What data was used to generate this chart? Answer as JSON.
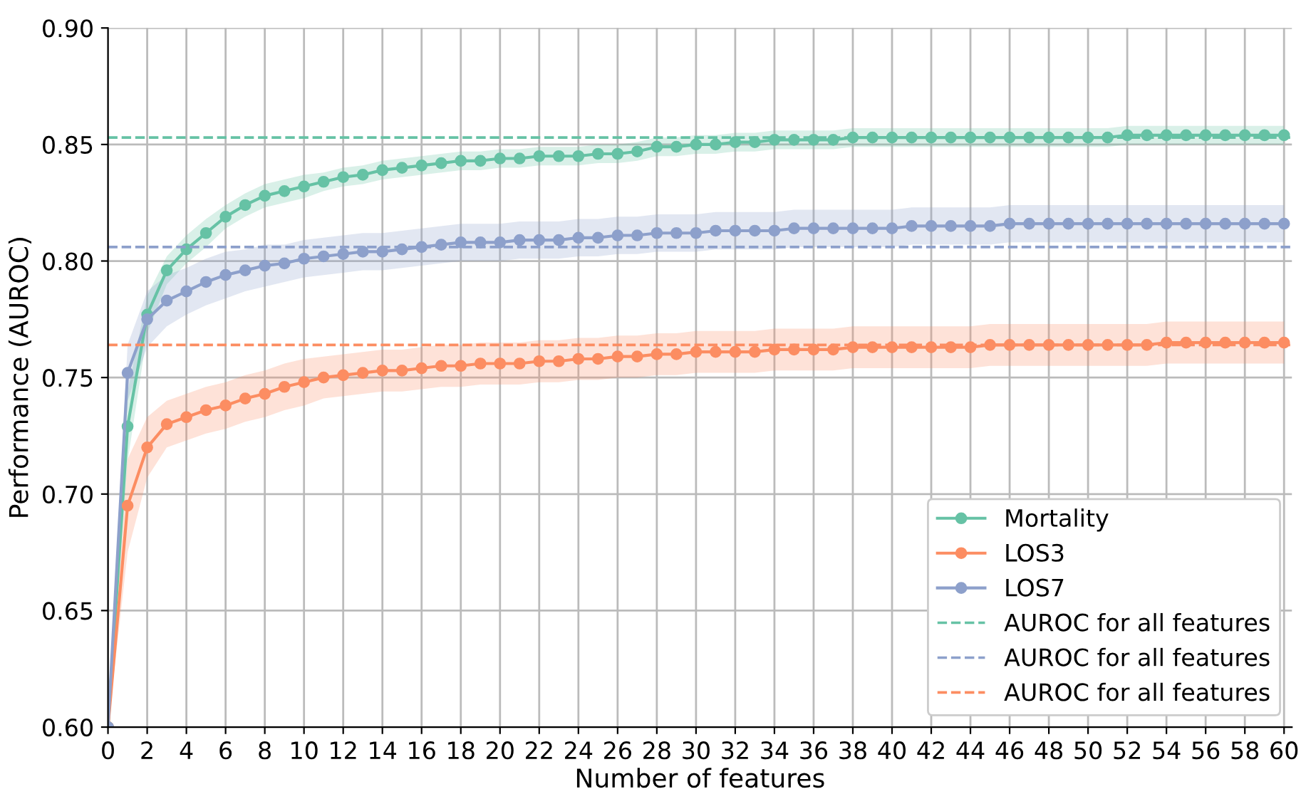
{
  "chart_data": {
    "type": "line",
    "xlabel": "Number of features",
    "ylabel": "Performance (AUROC)",
    "x": [
      0,
      1,
      2,
      3,
      4,
      5,
      6,
      7,
      8,
      9,
      10,
      11,
      12,
      13,
      14,
      15,
      16,
      17,
      18,
      19,
      20,
      21,
      22,
      23,
      24,
      25,
      26,
      27,
      28,
      29,
      30,
      31,
      32,
      33,
      34,
      35,
      36,
      37,
      38,
      39,
      40,
      41,
      42,
      43,
      44,
      45,
      46,
      47,
      48,
      49,
      50,
      51,
      52,
      53,
      54,
      55,
      56,
      57,
      58,
      59,
      60
    ],
    "series": [
      {
        "name": "Mortality",
        "color": "#66c2a5",
        "values": [
          0.6,
          0.729,
          0.777,
          0.796,
          0.805,
          0.812,
          0.819,
          0.824,
          0.828,
          0.83,
          0.832,
          0.834,
          0.836,
          0.837,
          0.839,
          0.84,
          0.841,
          0.842,
          0.843,
          0.843,
          0.844,
          0.844,
          0.845,
          0.845,
          0.845,
          0.846,
          0.846,
          0.847,
          0.849,
          0.849,
          0.85,
          0.85,
          0.851,
          0.851,
          0.852,
          0.852,
          0.852,
          0.852,
          0.853,
          0.853,
          0.853,
          0.853,
          0.853,
          0.853,
          0.853,
          0.853,
          0.853,
          0.853,
          0.853,
          0.853,
          0.853,
          0.853,
          0.854,
          0.854,
          0.854,
          0.854,
          0.854,
          0.854,
          0.854,
          0.854,
          0.854
        ],
        "lower": [
          0.6,
          0.714,
          0.769,
          0.79,
          0.799,
          0.806,
          0.814,
          0.819,
          0.823,
          0.825,
          0.827,
          0.83,
          0.832,
          0.833,
          0.835,
          0.836,
          0.837,
          0.838,
          0.839,
          0.839,
          0.84,
          0.84,
          0.841,
          0.841,
          0.841,
          0.842,
          0.842,
          0.843,
          0.845,
          0.845,
          0.846,
          0.846,
          0.847,
          0.847,
          0.848,
          0.848,
          0.848,
          0.848,
          0.849,
          0.849,
          0.849,
          0.849,
          0.849,
          0.849,
          0.849,
          0.849,
          0.849,
          0.849,
          0.849,
          0.849,
          0.849,
          0.849,
          0.85,
          0.85,
          0.85,
          0.85,
          0.85,
          0.85,
          0.85,
          0.85,
          0.85
        ],
        "upper": [
          0.6,
          0.744,
          0.785,
          0.802,
          0.811,
          0.818,
          0.824,
          0.829,
          0.833,
          0.835,
          0.837,
          0.838,
          0.84,
          0.841,
          0.843,
          0.844,
          0.845,
          0.846,
          0.847,
          0.847,
          0.848,
          0.848,
          0.849,
          0.849,
          0.849,
          0.85,
          0.85,
          0.851,
          0.853,
          0.853,
          0.854,
          0.854,
          0.855,
          0.855,
          0.856,
          0.856,
          0.856,
          0.856,
          0.857,
          0.857,
          0.857,
          0.857,
          0.857,
          0.857,
          0.857,
          0.857,
          0.857,
          0.857,
          0.857,
          0.857,
          0.857,
          0.857,
          0.858,
          0.858,
          0.858,
          0.858,
          0.858,
          0.858,
          0.858,
          0.858,
          0.858
        ]
      },
      {
        "name": "LOS3",
        "color": "#fc8d62",
        "values": [
          0.6,
          0.695,
          0.72,
          0.73,
          0.733,
          0.736,
          0.738,
          0.741,
          0.743,
          0.746,
          0.748,
          0.75,
          0.751,
          0.752,
          0.753,
          0.753,
          0.754,
          0.755,
          0.755,
          0.756,
          0.756,
          0.756,
          0.757,
          0.757,
          0.758,
          0.758,
          0.759,
          0.759,
          0.76,
          0.76,
          0.761,
          0.761,
          0.761,
          0.761,
          0.762,
          0.762,
          0.762,
          0.762,
          0.763,
          0.763,
          0.763,
          0.763,
          0.763,
          0.763,
          0.763,
          0.764,
          0.764,
          0.764,
          0.764,
          0.764,
          0.764,
          0.764,
          0.764,
          0.764,
          0.765,
          0.765,
          0.765,
          0.765,
          0.765,
          0.765,
          0.765
        ],
        "lower": [
          0.6,
          0.675,
          0.707,
          0.72,
          0.723,
          0.726,
          0.728,
          0.731,
          0.733,
          0.736,
          0.738,
          0.741,
          0.742,
          0.743,
          0.744,
          0.744,
          0.745,
          0.746,
          0.746,
          0.747,
          0.747,
          0.747,
          0.748,
          0.748,
          0.749,
          0.749,
          0.75,
          0.75,
          0.751,
          0.751,
          0.752,
          0.752,
          0.752,
          0.752,
          0.753,
          0.753,
          0.753,
          0.753,
          0.754,
          0.754,
          0.754,
          0.754,
          0.754,
          0.754,
          0.754,
          0.755,
          0.755,
          0.755,
          0.755,
          0.755,
          0.755,
          0.755,
          0.755,
          0.755,
          0.756,
          0.756,
          0.756,
          0.756,
          0.756,
          0.756,
          0.756
        ],
        "upper": [
          0.6,
          0.715,
          0.733,
          0.74,
          0.743,
          0.746,
          0.748,
          0.751,
          0.753,
          0.756,
          0.758,
          0.759,
          0.76,
          0.761,
          0.762,
          0.762,
          0.763,
          0.764,
          0.764,
          0.765,
          0.765,
          0.765,
          0.766,
          0.766,
          0.767,
          0.767,
          0.768,
          0.768,
          0.769,
          0.769,
          0.77,
          0.77,
          0.77,
          0.77,
          0.771,
          0.771,
          0.771,
          0.771,
          0.772,
          0.772,
          0.772,
          0.772,
          0.772,
          0.772,
          0.772,
          0.773,
          0.773,
          0.773,
          0.773,
          0.773,
          0.773,
          0.773,
          0.773,
          0.773,
          0.774,
          0.774,
          0.774,
          0.774,
          0.774,
          0.774,
          0.774
        ]
      },
      {
        "name": "LOS7",
        "color": "#8da0cb",
        "values": [
          0.6,
          0.752,
          0.775,
          0.783,
          0.787,
          0.791,
          0.794,
          0.796,
          0.798,
          0.799,
          0.801,
          0.802,
          0.803,
          0.804,
          0.804,
          0.805,
          0.806,
          0.807,
          0.808,
          0.808,
          0.808,
          0.809,
          0.809,
          0.809,
          0.81,
          0.81,
          0.811,
          0.811,
          0.812,
          0.812,
          0.812,
          0.813,
          0.813,
          0.813,
          0.813,
          0.814,
          0.814,
          0.814,
          0.814,
          0.814,
          0.814,
          0.815,
          0.815,
          0.815,
          0.815,
          0.815,
          0.816,
          0.816,
          0.816,
          0.816,
          0.816,
          0.816,
          0.816,
          0.816,
          0.816,
          0.816,
          0.816,
          0.816,
          0.816,
          0.816,
          0.816
        ],
        "lower": [
          0.6,
          0.74,
          0.763,
          0.772,
          0.777,
          0.781,
          0.784,
          0.787,
          0.789,
          0.791,
          0.793,
          0.794,
          0.795,
          0.796,
          0.796,
          0.797,
          0.798,
          0.799,
          0.8,
          0.8,
          0.8,
          0.801,
          0.801,
          0.801,
          0.802,
          0.802,
          0.803,
          0.803,
          0.804,
          0.804,
          0.804,
          0.805,
          0.805,
          0.805,
          0.805,
          0.806,
          0.806,
          0.806,
          0.806,
          0.806,
          0.806,
          0.807,
          0.807,
          0.807,
          0.807,
          0.807,
          0.808,
          0.808,
          0.808,
          0.808,
          0.808,
          0.808,
          0.808,
          0.808,
          0.808,
          0.808,
          0.808,
          0.808,
          0.808,
          0.808,
          0.808
        ],
        "upper": [
          0.6,
          0.764,
          0.787,
          0.794,
          0.797,
          0.801,
          0.804,
          0.805,
          0.807,
          0.807,
          0.809,
          0.81,
          0.811,
          0.812,
          0.812,
          0.813,
          0.814,
          0.815,
          0.816,
          0.816,
          0.816,
          0.817,
          0.817,
          0.817,
          0.818,
          0.818,
          0.819,
          0.819,
          0.82,
          0.82,
          0.82,
          0.821,
          0.821,
          0.821,
          0.821,
          0.822,
          0.822,
          0.822,
          0.822,
          0.822,
          0.822,
          0.823,
          0.823,
          0.823,
          0.823,
          0.823,
          0.824,
          0.824,
          0.824,
          0.824,
          0.824,
          0.824,
          0.824,
          0.824,
          0.824,
          0.824,
          0.824,
          0.824,
          0.824,
          0.824,
          0.824
        ]
      }
    ],
    "ref_lines": [
      {
        "axis": "y",
        "value": 0.853,
        "label": "AUROC for all features",
        "color": "#66c2a5",
        "line_style": "dashed"
      },
      {
        "axis": "y",
        "value": 0.806,
        "label": "AUROC for all features",
        "color": "#8da0cb",
        "line_style": "dashed"
      },
      {
        "axis": "y",
        "value": 0.764,
        "label": "AUROC for all features",
        "color": "#fc8d62",
        "line_style": "dashed"
      }
    ],
    "xlim": [
      0,
      60.4
    ],
    "ylim": [
      0.6,
      0.9
    ],
    "xticks": [
      0,
      2,
      4,
      6,
      8,
      10,
      12,
      14,
      16,
      18,
      20,
      22,
      24,
      26,
      28,
      30,
      32,
      34,
      36,
      38,
      40,
      42,
      44,
      46,
      48,
      50,
      52,
      54,
      56,
      58,
      60
    ],
    "yticks": [
      {
        "value": 0.6,
        "label": "0.60"
      },
      {
        "value": 0.65,
        "label": "0.65"
      },
      {
        "value": 0.7,
        "label": "0.70"
      },
      {
        "value": 0.75,
        "label": "0.75"
      },
      {
        "value": 0.8,
        "label": "0.80"
      },
      {
        "value": 0.85,
        "label": "0.85"
      },
      {
        "value": 0.9,
        "label": "0.90"
      }
    ],
    "grid": true,
    "legend": "bottom right",
    "marker": "circle",
    "line_style": "solid"
  }
}
